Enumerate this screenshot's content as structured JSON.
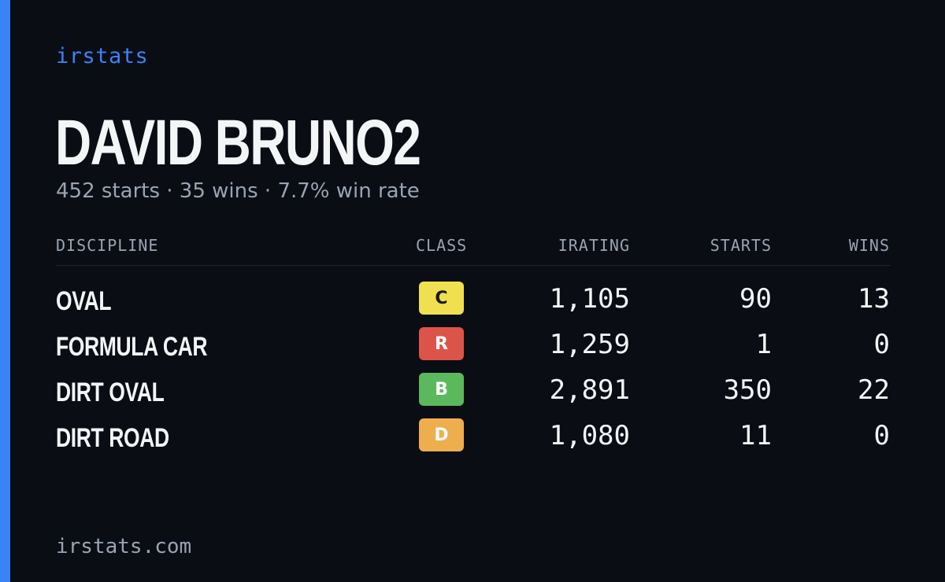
{
  "brand": "irstats",
  "player_name": "DAVID BRUNO2",
  "summary": "452 starts · 35 wins · 7.7% win rate",
  "table": {
    "headers": {
      "discipline": "DISCIPLINE",
      "class": "CLASS",
      "irating": "IRATING",
      "starts": "STARTS",
      "wins": "WINS"
    },
    "rows": [
      {
        "discipline": "OVAL",
        "class": "C",
        "class_color": "#f0e04f",
        "class_text_color": "#1a1a1a",
        "irating": "1,105",
        "starts": "90",
        "wins": "13"
      },
      {
        "discipline": "FORMULA CAR",
        "class": "R",
        "class_color": "#dc534a",
        "class_text_color": "#ffffff",
        "irating": "1,259",
        "starts": "1",
        "wins": "0"
      },
      {
        "discipline": "DIRT OVAL",
        "class": "B",
        "class_color": "#5cb85c",
        "class_text_color": "#ffffff",
        "irating": "2,891",
        "starts": "350",
        "wins": "22"
      },
      {
        "discipline": "DIRT ROAD",
        "class": "D",
        "class_color": "#eeae4e",
        "class_text_color": "#ffffff",
        "irating": "1,080",
        "starts": "11",
        "wins": "0"
      }
    ]
  },
  "footer": "irstats.com",
  "colors": {
    "background": "#0a0d14",
    "accent": "#3b82f6",
    "muted_text": "#9aa3b2"
  }
}
